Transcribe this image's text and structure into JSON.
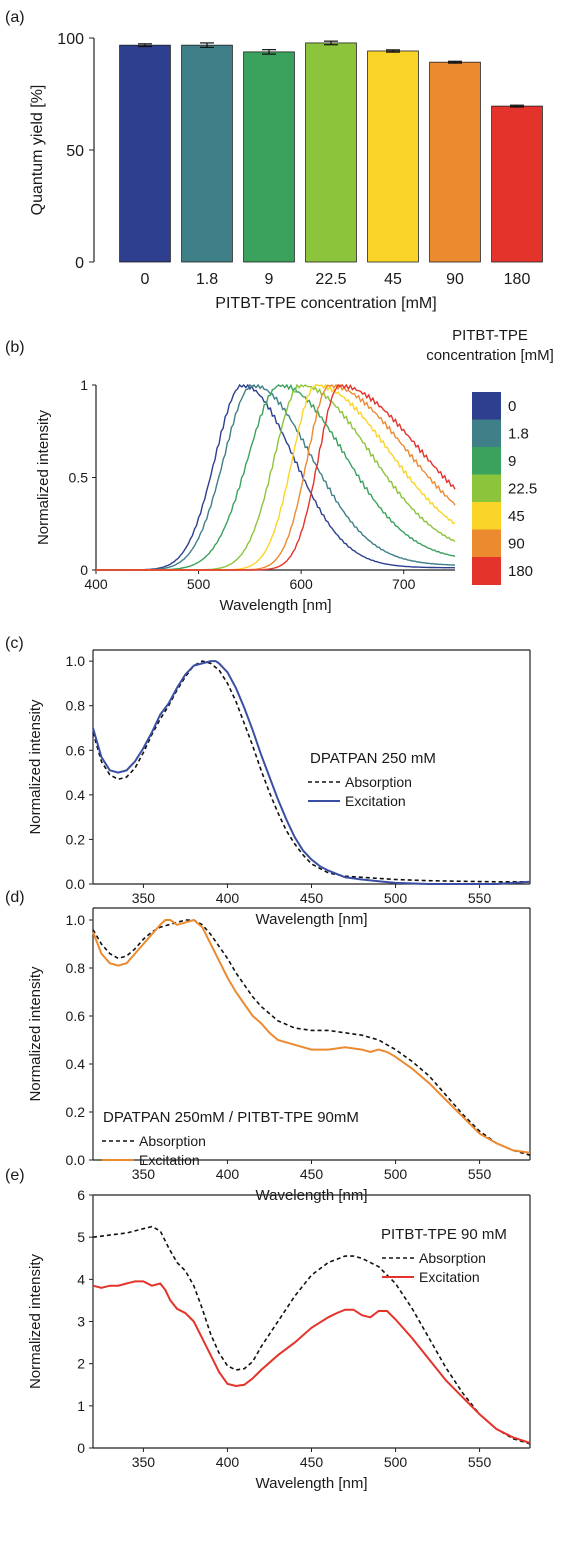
{
  "panel_labels": [
    "(a)",
    "(b)",
    "(c)",
    "(d)",
    "(e)"
  ],
  "chart_data": [
    {
      "panel": "(a)",
      "type": "bar",
      "xlabel": "PITBT-TPE concentration [mM]",
      "ylabel": "Quantum yield [%]",
      "ylim": [
        0,
        100
      ],
      "yticks": [
        "0",
        "50",
        "100"
      ],
      "categories": [
        "0",
        "1.8",
        "9",
        "22.5",
        "45",
        "90",
        "180"
      ],
      "values": [
        96.8,
        96.8,
        93.8,
        97.8,
        94.2,
        89.2,
        69.6
      ],
      "errors": [
        0.6,
        1.0,
        1.0,
        0.8,
        0.5,
        0.4,
        0.4
      ],
      "colors": [
        "#2d3f8e",
        "#3f7f88",
        "#3aa25c",
        "#8cc43c",
        "#fad528",
        "#ec8a30",
        "#e4332a"
      ],
      "grid": false
    },
    {
      "panel": "(b)",
      "type": "line",
      "xlabel": "Wavelength [nm]",
      "ylabel": "Normalized intensity",
      "xlim": [
        400,
        750
      ],
      "ylim": [
        0,
        1
      ],
      "xticks": [
        "400",
        "500",
        "600",
        "700"
      ],
      "yticks": [
        "0",
        "0.5",
        "1"
      ],
      "legend_title": [
        "PITBT-TPE",
        "concentration [mM]"
      ],
      "legend_title_colors": [
        "#2d3f8e",
        "#1a1a1a"
      ],
      "legend_labels": [
        "0",
        "1.8",
        "9",
        "22.5",
        "45",
        "90",
        "180"
      ],
      "series": [
        {
          "name": "0",
          "color": "#2d3f8e",
          "peak": 543,
          "sigma_left": 38,
          "sigma_right": 70,
          "tail": 0.02
        },
        {
          "name": "1.8",
          "color": "#3f7f88",
          "peak": 553,
          "sigma_left": 40,
          "sigma_right": 80,
          "tail": 0.04
        },
        {
          "name": "9",
          "color": "#3aa25c",
          "peak": 580,
          "sigma_left": 45,
          "sigma_right": 88,
          "tail": 0.08
        },
        {
          "name": "22.5",
          "color": "#8cc43c",
          "peak": 600,
          "sigma_left": 37,
          "sigma_right": 95,
          "tail": 0.12
        },
        {
          "name": "45",
          "color": "#fad528",
          "peak": 615,
          "sigma_left": 33,
          "sigma_right": 100,
          "tail": 0.16
        },
        {
          "name": "90",
          "color": "#ec8a30",
          "peak": 628,
          "sigma_left": 31,
          "sigma_right": 105,
          "tail": 0.2
        },
        {
          "name": "180",
          "color": "#e4332a",
          "peak": 638,
          "sigma_left": 30,
          "sigma_right": 108,
          "tail": 0.24
        }
      ],
      "grid": false
    },
    {
      "panel": "(c)",
      "type": "line",
      "title": "DPATPAN 250 mM",
      "title_color": "#2d3f8e",
      "xlabel": "Wavelength [nm]",
      "ylabel": "Normalized intensity",
      "xlim": [
        320,
        580
      ],
      "ylim": [
        0,
        1.05
      ],
      "xticks": [
        "350",
        "400",
        "450",
        "500",
        "550"
      ],
      "yticks": [
        "0.0",
        "0.2",
        "0.4",
        "0.6",
        "0.8",
        "1.0"
      ],
      "series": [
        {
          "name": "Absorption",
          "color": "#111111",
          "dash": "4,3",
          "x": [
            320,
            325,
            330,
            335,
            340,
            345,
            350,
            355,
            360,
            365,
            370,
            375,
            380,
            385,
            390,
            395,
            400,
            405,
            410,
            415,
            420,
            425,
            430,
            435,
            440,
            445,
            450,
            455,
            460,
            470,
            480,
            490,
            500,
            520,
            540,
            560,
            580
          ],
          "y": [
            0.68,
            0.55,
            0.49,
            0.47,
            0.48,
            0.52,
            0.59,
            0.67,
            0.74,
            0.8,
            0.87,
            0.93,
            0.98,
            1.0,
            0.99,
            0.96,
            0.9,
            0.82,
            0.72,
            0.62,
            0.51,
            0.41,
            0.32,
            0.24,
            0.18,
            0.13,
            0.09,
            0.07,
            0.05,
            0.035,
            0.03,
            0.025,
            0.02,
            0.015,
            0.012,
            0.01,
            0.01
          ]
        },
        {
          "name": "Excitation",
          "color": "#3a4ea3",
          "dash": "",
          "x": [
            320,
            325,
            330,
            335,
            340,
            345,
            350,
            355,
            360,
            365,
            370,
            375,
            380,
            385,
            390,
            393,
            395,
            400,
            405,
            410,
            415,
            420,
            425,
            430,
            435,
            440,
            445,
            450,
            455,
            460,
            470,
            480,
            490,
            500,
            520,
            540,
            560,
            580
          ],
          "y": [
            0.7,
            0.57,
            0.51,
            0.5,
            0.51,
            0.55,
            0.61,
            0.68,
            0.76,
            0.81,
            0.88,
            0.94,
            0.98,
            0.99,
            1.0,
            1.0,
            0.99,
            0.95,
            0.88,
            0.79,
            0.69,
            0.58,
            0.48,
            0.38,
            0.29,
            0.21,
            0.15,
            0.11,
            0.08,
            0.06,
            0.03,
            0.02,
            0.012,
            0.005,
            0.0,
            0.0,
            0.0,
            0.01
          ]
        }
      ],
      "legend_labels": [
        "Absorption",
        "Excitation"
      ],
      "grid": false
    },
    {
      "panel": "(d)",
      "type": "line",
      "title": "DPATPAN 250mM / PITBT-TPE 90mM",
      "title_color": "#ec8a30",
      "xlabel": "Wavelength [nm]",
      "ylabel": "Normalized intensity",
      "xlim": [
        320,
        580
      ],
      "ylim": [
        0,
        1.05
      ],
      "xticks": [
        "350",
        "400",
        "450",
        "500",
        "550"
      ],
      "yticks": [
        "0.0",
        "0.2",
        "0.4",
        "0.6",
        "0.8",
        "1.0"
      ],
      "series": [
        {
          "name": "Absorption",
          "color": "#111111",
          "dash": "4,3",
          "x": [
            320,
            325,
            330,
            335,
            340,
            345,
            350,
            355,
            360,
            365,
            370,
            375,
            380,
            385,
            390,
            395,
            400,
            405,
            410,
            415,
            420,
            430,
            440,
            450,
            460,
            470,
            480,
            490,
            500,
            510,
            520,
            530,
            540,
            550,
            560,
            570,
            580
          ],
          "y": [
            0.96,
            0.9,
            0.86,
            0.84,
            0.85,
            0.88,
            0.92,
            0.95,
            0.97,
            0.98,
            0.99,
            1.0,
            1.0,
            0.98,
            0.94,
            0.89,
            0.84,
            0.78,
            0.73,
            0.68,
            0.64,
            0.58,
            0.55,
            0.54,
            0.54,
            0.53,
            0.52,
            0.5,
            0.46,
            0.41,
            0.35,
            0.27,
            0.19,
            0.12,
            0.07,
            0.04,
            0.02
          ]
        },
        {
          "name": "Excitation",
          "color": "#ec8a30",
          "dash": "",
          "x": [
            320,
            325,
            330,
            335,
            340,
            345,
            350,
            355,
            360,
            363,
            366,
            370,
            375,
            380,
            385,
            390,
            395,
            400,
            405,
            410,
            415,
            420,
            425,
            430,
            440,
            450,
            460,
            470,
            480,
            485,
            490,
            495,
            500,
            510,
            520,
            530,
            540,
            550,
            560,
            570,
            580
          ],
          "y": [
            0.95,
            0.86,
            0.82,
            0.81,
            0.82,
            0.86,
            0.9,
            0.94,
            0.98,
            1.0,
            1.0,
            0.98,
            0.99,
            1.0,
            0.97,
            0.9,
            0.83,
            0.76,
            0.7,
            0.65,
            0.6,
            0.57,
            0.53,
            0.5,
            0.48,
            0.46,
            0.46,
            0.47,
            0.46,
            0.45,
            0.46,
            0.45,
            0.43,
            0.38,
            0.32,
            0.25,
            0.18,
            0.11,
            0.07,
            0.04,
            0.03
          ]
        }
      ],
      "legend_labels": [
        "Absorption",
        "Excitation"
      ],
      "grid": false
    },
    {
      "panel": "(e)",
      "type": "line",
      "title": "PITBT-TPE 90 mM",
      "title_color": "#e4332a",
      "xlabel": "Wavelength [nm]",
      "ylabel": "Normalized intensity",
      "xlim": [
        320,
        580
      ],
      "ylim": [
        0,
        6
      ],
      "xticks": [
        "350",
        "400",
        "450",
        "500",
        "550"
      ],
      "yticks": [
        "0",
        "1",
        "2",
        "3",
        "4",
        "5",
        "6"
      ],
      "series": [
        {
          "name": "Absorption",
          "color": "#111111",
          "dash": "4,3",
          "x": [
            320,
            330,
            340,
            350,
            355,
            360,
            365,
            370,
            375,
            380,
            385,
            390,
            395,
            400,
            405,
            410,
            415,
            420,
            430,
            440,
            450,
            460,
            470,
            475,
            480,
            490,
            500,
            510,
            520,
            530,
            540,
            550,
            560,
            570,
            580
          ],
          "y": [
            5.0,
            5.05,
            5.1,
            5.2,
            5.25,
            5.15,
            4.75,
            4.4,
            4.2,
            3.85,
            3.3,
            2.7,
            2.25,
            1.95,
            1.85,
            1.88,
            2.05,
            2.4,
            3.0,
            3.6,
            4.1,
            4.4,
            4.55,
            4.55,
            4.5,
            4.3,
            3.9,
            3.3,
            2.6,
            1.9,
            1.3,
            0.8,
            0.45,
            0.22,
            0.1
          ]
        },
        {
          "name": "Excitation",
          "color": "#e4332a",
          "dash": "",
          "x": [
            320,
            325,
            330,
            335,
            340,
            345,
            350,
            355,
            360,
            363,
            366,
            370,
            375,
            380,
            385,
            390,
            395,
            400,
            405,
            410,
            415,
            420,
            430,
            440,
            450,
            460,
            465,
            470,
            475,
            480,
            485,
            490,
            495,
            500,
            510,
            520,
            530,
            540,
            550,
            560,
            570,
            580
          ],
          "y": [
            3.85,
            3.8,
            3.85,
            3.85,
            3.9,
            3.95,
            3.95,
            3.85,
            3.9,
            3.75,
            3.5,
            3.3,
            3.2,
            3.0,
            2.6,
            2.2,
            1.8,
            1.52,
            1.47,
            1.5,
            1.65,
            1.85,
            2.2,
            2.5,
            2.85,
            3.1,
            3.2,
            3.28,
            3.28,
            3.15,
            3.1,
            3.25,
            3.25,
            3.05,
            2.6,
            2.1,
            1.6,
            1.2,
            0.8,
            0.45,
            0.25,
            0.12
          ]
        }
      ],
      "legend_labels": [
        "Absorption",
        "Excitation"
      ],
      "grid": false
    }
  ]
}
